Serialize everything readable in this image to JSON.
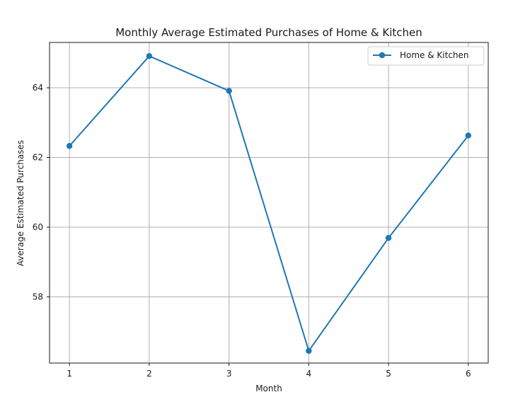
{
  "chart_data": {
    "type": "line",
    "title": "Monthly Average Estimated Purchases of Home & Kitchen",
    "xlabel": "Month",
    "ylabel": "Average Estimated Purchases",
    "x": [
      1,
      2,
      3,
      4,
      5,
      6
    ],
    "x_tick_labels": [
      "1",
      "2",
      "3",
      "4",
      "5",
      "6"
    ],
    "y_ticks": [
      58,
      60,
      62,
      64
    ],
    "y_tick_labels": [
      "58",
      "60",
      "62",
      "64"
    ],
    "xlim": [
      0.75,
      6.25
    ],
    "ylim": [
      56.1,
      65.3
    ],
    "grid": true,
    "legend_position": "top-right",
    "series": [
      {
        "name": "Home & Kitchen",
        "color": "#1f77b4",
        "marker": "circle",
        "values": [
          62.33,
          64.91,
          63.91,
          56.45,
          59.69,
          62.63
        ]
      }
    ]
  }
}
